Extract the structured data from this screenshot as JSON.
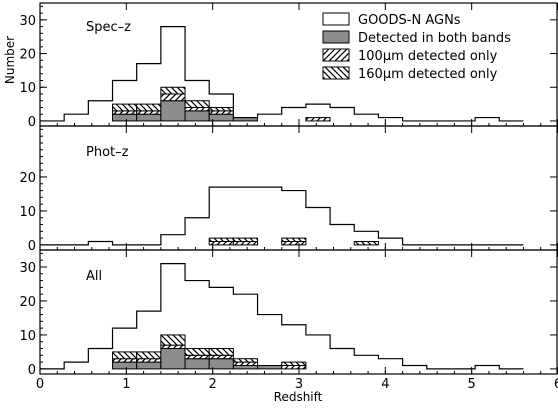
{
  "chart_data": {
    "type": "bar",
    "layout": "three stacked histogram panels sharing the x axis",
    "xlabel": "Redshift",
    "ylabel": "Number",
    "xlim": [
      0,
      6
    ],
    "x_ticks": [
      "0",
      "1",
      "2",
      "3",
      "4",
      "5",
      "6"
    ],
    "legend_placement": "top-right of top panel",
    "legend": [
      {
        "label": "GOODS-N AGNs",
        "style": "outline"
      },
      {
        "label": "Detected in both bands",
        "style": "filled-gray",
        "color": "#8c8c8c"
      },
      {
        "label": "100μm detected only",
        "style": "hatch-forward"
      },
      {
        "label": "160μm detected only",
        "style": "hatch-backward"
      }
    ],
    "bin_edges": [
      0.0,
      0.28,
      0.56,
      0.84,
      1.12,
      1.4,
      1.68,
      1.96,
      2.24,
      2.52,
      2.8,
      3.08,
      3.36,
      3.64,
      3.92,
      4.2,
      4.48,
      4.76,
      5.04,
      5.32,
      5.6,
      5.88
    ],
    "panels": [
      {
        "label": "Spec–z",
        "ylim": [
          -1.5,
          35
        ],
        "y_ticks": [
          "0",
          "10",
          "20",
          "30"
        ],
        "series": [
          {
            "name": "GOODS-N AGNs",
            "values": [
              0,
              2,
              6,
              12,
              17,
              28,
              12,
              8,
              1,
              2,
              4,
              5,
              4,
              2,
              1,
              0,
              0,
              0,
              1,
              0
            ]
          },
          {
            "name": "Detected in both bands",
            "values": [
              0,
              0,
              0,
              2,
              2,
              6,
              3,
              2,
              1,
              0,
              0,
              0,
              0,
              0,
              0,
              0,
              0,
              0,
              0,
              0
            ]
          },
          {
            "name": "100μm detected only",
            "values": [
              0,
              0,
              0,
              1,
              1,
              2,
              1,
              1,
              0,
              0,
              0,
              1,
              0,
              0,
              0,
              0,
              0,
              0,
              0,
              0
            ]
          },
          {
            "name": "160μm detected only",
            "values": [
              0,
              0,
              0,
              2,
              2,
              2,
              2,
              1,
              0,
              0,
              0,
              0,
              0,
              0,
              0,
              0,
              0,
              0,
              0,
              0
            ]
          }
        ]
      },
      {
        "label": "Phot–z",
        "ylim": [
          -1.5,
          35
        ],
        "y_ticks": [
          "0",
          "10",
          "20"
        ],
        "series": [
          {
            "name": "GOODS-N AGNs",
            "values": [
              0,
              0,
              1,
              0,
              0,
              3,
              8,
              17,
              17,
              17,
              16,
              11,
              6,
              4,
              2,
              0,
              0,
              0,
              0,
              0
            ]
          },
          {
            "name": "Detected in both bands",
            "values": [
              0,
              0,
              0,
              0,
              0,
              0,
              0,
              0,
              0,
              0,
              0,
              0,
              0,
              0,
              0,
              0,
              0,
              0,
              0,
              0
            ]
          },
          {
            "name": "100μm detected only",
            "values": [
              0,
              0,
              0,
              0,
              0,
              0,
              0,
              1,
              1,
              0,
              1,
              0,
              0,
              0,
              0,
              0,
              0,
              0,
              0,
              0
            ]
          },
          {
            "name": "160μm detected only",
            "values": [
              0,
              0,
              0,
              0,
              0,
              0,
              0,
              1,
              1,
              0,
              1,
              0,
              0,
              1,
              0,
              0,
              0,
              0,
              0,
              0
            ]
          }
        ]
      },
      {
        "label": "All",
        "ylim": [
          -1.5,
          35
        ],
        "y_ticks": [
          "0",
          "10",
          "20",
          "30"
        ],
        "series": [
          {
            "name": "GOODS-N AGNs",
            "values": [
              0,
              2,
              6,
              12,
              17,
              31,
              26,
              24,
              22,
              16,
              13,
              10,
              6,
              4,
              3,
              1,
              0,
              0,
              1,
              0
            ]
          },
          {
            "name": "Detected in both bands",
            "values": [
              0,
              0,
              0,
              2,
              2,
              6,
              3,
              3,
              1,
              1,
              0,
              0,
              0,
              0,
              0,
              0,
              0,
              0,
              0,
              0
            ]
          },
          {
            "name": "100μm detected only",
            "values": [
              0,
              0,
              0,
              1,
              1,
              1,
              1,
              1,
              1,
              0,
              1,
              0,
              0,
              0,
              0,
              0,
              0,
              0,
              0,
              0
            ]
          },
          {
            "name": "160μm detected only",
            "values": [
              0,
              0,
              0,
              2,
              2,
              3,
              2,
              2,
              1,
              0,
              1,
              0,
              0,
              0,
              0,
              0,
              0,
              0,
              0,
              0
            ]
          }
        ]
      }
    ]
  }
}
